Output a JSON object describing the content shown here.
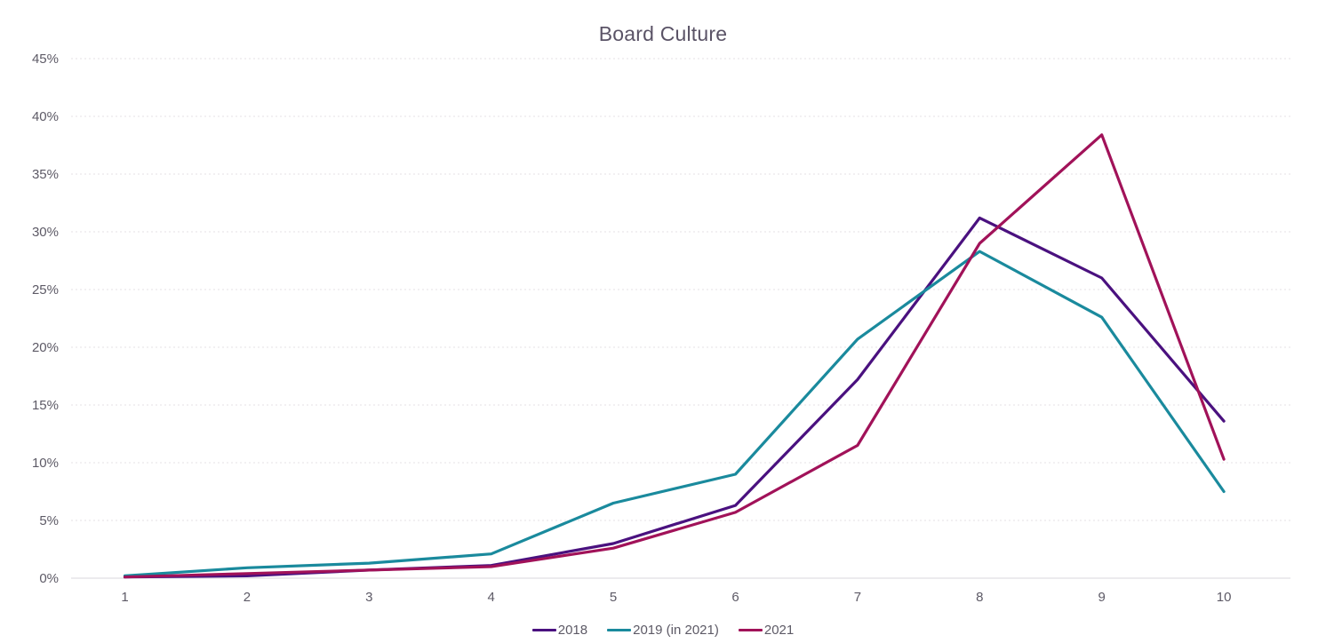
{
  "chart_data": {
    "type": "line",
    "title": "Board Culture",
    "title_color": "#5a5366",
    "axis_label_color": "#5d5a66",
    "grid_color": "#e4e2e6",
    "baseline_color": "#d9d7dc",
    "grid": "horizontal, dashed, baseline solid",
    "legend_position": "bottom-center",
    "x_categories": [
      "1",
      "2",
      "3",
      "4",
      "5",
      "6",
      "7",
      "8",
      "9",
      "10"
    ],
    "ylim": [
      0,
      45
    ],
    "y_ticks": [
      {
        "value": 0,
        "label": "0%"
      },
      {
        "value": 5,
        "label": "5%"
      },
      {
        "value": 10,
        "label": "10%"
      },
      {
        "value": 15,
        "label": "15%"
      },
      {
        "value": 20,
        "label": "20%"
      },
      {
        "value": 25,
        "label": "25%"
      },
      {
        "value": 30,
        "label": "30%"
      },
      {
        "value": 35,
        "label": "35%"
      },
      {
        "value": 40,
        "label": "40%"
      },
      {
        "value": 45,
        "label": "45%"
      }
    ],
    "series": [
      {
        "name": "2018",
        "color": "#4a117f",
        "values": [
          0.1,
          0.2,
          0.7,
          1.1,
          3.0,
          6.3,
          17.2,
          31.2,
          26.0,
          13.6
        ]
      },
      {
        "name": "2019 (in 2021)",
        "color": "#1a8a9d",
        "values": [
          0.2,
          0.9,
          1.3,
          2.1,
          6.5,
          9.0,
          20.7,
          28.3,
          22.6,
          7.5
        ]
      },
      {
        "name": "2021",
        "color": "#a11259",
        "values": [
          0.1,
          0.4,
          0.7,
          1.0,
          2.6,
          5.7,
          11.5,
          29.0,
          38.4,
          10.3
        ]
      }
    ]
  }
}
